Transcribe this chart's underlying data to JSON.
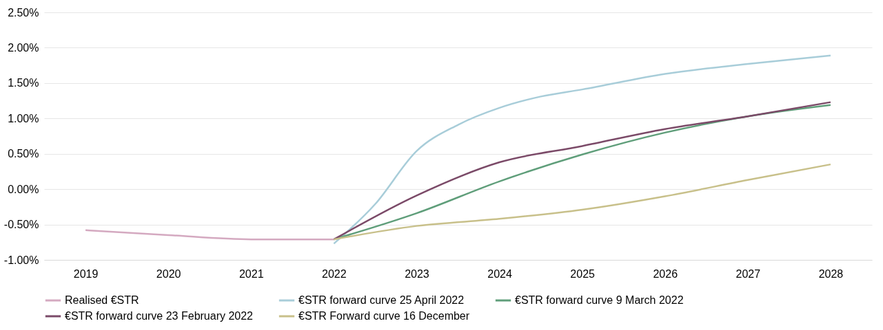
{
  "chart_data": {
    "type": "line",
    "xlim": [
      2018.5,
      2028.5
    ],
    "xticks": [
      2019,
      2020,
      2021,
      2022,
      2023,
      2024,
      2025,
      2026,
      2027,
      2028
    ],
    "ylim": [
      -1.0,
      2.5
    ],
    "yticks": [
      {
        "value": -1.0,
        "label": "-1.00%"
      },
      {
        "value": -0.5,
        "label": "-0.50%"
      },
      {
        "value": 0.0,
        "label": "0.00%"
      },
      {
        "value": 0.5,
        "label": "0.50%"
      },
      {
        "value": 1.0,
        "label": "1.00%"
      },
      {
        "value": 1.5,
        "label": "1.50%"
      },
      {
        "value": 2.0,
        "label": "2.00%"
      },
      {
        "value": 2.5,
        "label": "2.50%"
      }
    ],
    "grid": "y",
    "legend": "bottom",
    "marker": "none",
    "line_style": "solid",
    "series": [
      {
        "name": "Realised €STR",
        "color": "#d4a9c0",
        "x": [
          2019,
          2020,
          2021,
          2022
        ],
        "values": [
          -0.58,
          -0.65,
          -0.71,
          -0.71
        ]
      },
      {
        "name": "€STR forward curve 25 April 2022",
        "color": "#a8cdd9",
        "x": [
          2022,
          2022.5,
          2023,
          2023.5,
          2024,
          2024.5,
          2025,
          2026,
          2027,
          2028
        ],
        "values": [
          -0.77,
          -0.21,
          0.54,
          0.91,
          1.15,
          1.31,
          1.41,
          1.63,
          1.77,
          1.89
        ]
      },
      {
        "name": "€STR forward curve 9 March 2022",
        "color": "#5f9e7a",
        "x": [
          2022,
          2023,
          2024,
          2025,
          2026,
          2027,
          2028
        ],
        "values": [
          -0.71,
          -0.34,
          0.11,
          0.49,
          0.8,
          1.03,
          1.19
        ]
      },
      {
        "name": "€STR forward curve 23 February 2022",
        "color": "#7b4a68",
        "x": [
          2022,
          2023,
          2024,
          2025,
          2026,
          2027,
          2028
        ],
        "values": [
          -0.71,
          -0.09,
          0.38,
          0.61,
          0.85,
          1.03,
          1.23
        ]
      },
      {
        "name": "€STR Forward curve 16 December",
        "color": "#c8c08a",
        "x": [
          2022,
          2023,
          2024,
          2025,
          2026,
          2027,
          2028
        ],
        "values": [
          -0.71,
          -0.52,
          -0.42,
          -0.29,
          -0.1,
          0.13,
          0.35
        ]
      }
    ]
  }
}
